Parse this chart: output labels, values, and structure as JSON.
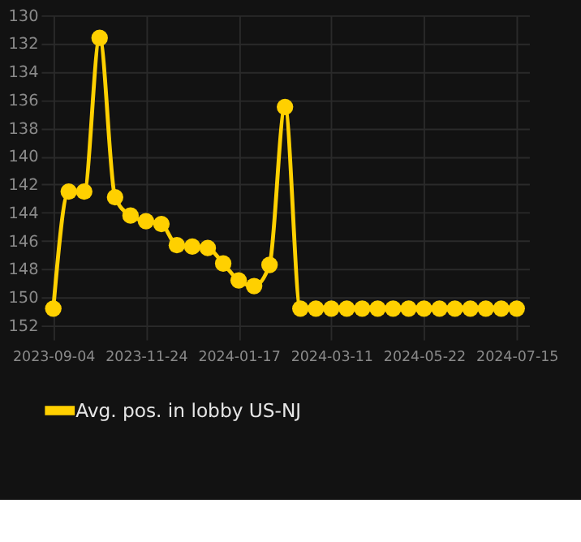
{
  "chart_data": {
    "type": "line",
    "categories": [
      "2023-09-04",
      null,
      null,
      null,
      null,
      null,
      "2023-11-24",
      null,
      null,
      null,
      null,
      null,
      "2024-01-17",
      null,
      null,
      null,
      null,
      null,
      "2024-03-11",
      null,
      null,
      null,
      null,
      null,
      "2024-05-22",
      null,
      null,
      null,
      null,
      null,
      "2024-07-15"
    ],
    "series": [
      {
        "name": "Avg. pos. in lobby US-NJ",
        "color": "#ffd000",
        "values": [
          150.8,
          142.5,
          142.5,
          131.6,
          142.9,
          144.2,
          144.6,
          144.8,
          146.3,
          146.4,
          146.5,
          147.6,
          148.8,
          149.2,
          147.7,
          136.5,
          150.8,
          150.8,
          150.8,
          150.8,
          150.8,
          150.8,
          150.8,
          150.8,
          150.8,
          150.8,
          150.8,
          150.8,
          150.8,
          150.8,
          150.8
        ]
      }
    ],
    "ylim": [
      153,
      130
    ],
    "yticks": [
      130,
      132,
      134,
      136,
      138,
      140,
      142,
      144,
      146,
      148,
      150,
      152
    ],
    "grid": true,
    "legend": "bottom",
    "marker": "circle",
    "line_style": "solid"
  }
}
